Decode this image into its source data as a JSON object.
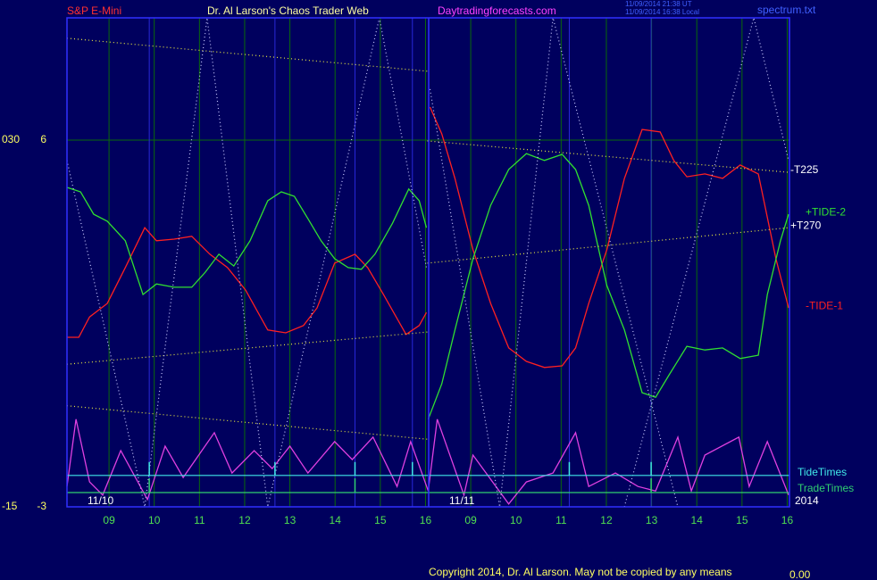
{
  "header": {
    "symbol": "S&P E-Mini",
    "site_title": "Dr. Al Larson's Chaos Trader Web",
    "site_url": "Daytradingforecasts.com",
    "timestamp_ut": "11/09/2014 21:38 UT",
    "timestamp_local": "11/09/2014 16:38 Local",
    "file": "spectrum.txt"
  },
  "footer": {
    "copyright": "Copyright 2014, Dr. Al Larson. May not be copied by any means",
    "readout": "0.00"
  },
  "chart_data": {
    "type": "line",
    "xlim": [
      -0.93,
      15.05
    ],
    "ylim": [
      -3,
      9
    ],
    "yticks": [
      6,
      -3
    ],
    "y2lim": [
      -15,
      45
    ],
    "y2ticks": [
      {
        "value": 30,
        "label": "030"
      },
      -15
    ],
    "xticks": [
      {
        "value": 0,
        "label": "09"
      },
      {
        "value": 1,
        "label": "10"
      },
      {
        "value": 2,
        "label": "11"
      },
      {
        "value": 3,
        "label": "12"
      },
      {
        "value": 4,
        "label": "13"
      },
      {
        "value": 5,
        "label": "14"
      },
      {
        "value": 6,
        "label": "15"
      },
      {
        "value": 7,
        "label": "16"
      },
      {
        "value": 8,
        "label": "09"
      },
      {
        "value": 9,
        "label": "10"
      },
      {
        "value": 10,
        "label": "11"
      },
      {
        "value": 11,
        "label": "12"
      },
      {
        "value": 12,
        "label": "13"
      },
      {
        "value": 13,
        "label": "14"
      },
      {
        "value": 14,
        "label": "15"
      },
      {
        "value": 15,
        "label": "16"
      }
    ],
    "date_labels": [
      "11/10",
      "11/11",
      "2014"
    ],
    "grid": true,
    "series": [
      {
        "name": "-TIDE-1",
        "color": "#ff2020",
        "style": "solid",
        "x": [
          -0.93,
          -0.67,
          -0.43,
          -0.04,
          0.36,
          0.79,
          1.05,
          1.44,
          1.83,
          2.23,
          2.62,
          3.02,
          3.51,
          3.91,
          4.3,
          4.6,
          4.99,
          5.44,
          5.72,
          6.07,
          6.57,
          6.86,
          7.02,
          null,
          7.1,
          7.36,
          7.65,
          8.05,
          8.44,
          8.84,
          9.23,
          9.63,
          10.02,
          10.32,
          10.61,
          11.01,
          11.4,
          11.79,
          12.19,
          12.49,
          12.78,
          13.18,
          13.57,
          13.96,
          14.36,
          14.75,
          15.03
        ],
        "values": [
          1.16,
          1.16,
          1.66,
          1.99,
          2.87,
          3.85,
          3.53,
          3.57,
          3.64,
          3.2,
          2.87,
          2.32,
          1.34,
          1.27,
          1.45,
          1.88,
          2.98,
          3.2,
          2.87,
          2.21,
          1.23,
          1.45,
          1.77,
          null,
          6.81,
          6.15,
          5.06,
          3.31,
          1.99,
          0.9,
          0.57,
          0.42,
          0.46,
          0.9,
          1.99,
          3.31,
          5.06,
          6.26,
          6.2,
          5.5,
          5.1,
          5.17,
          5.06,
          5.39,
          5.17,
          3.09,
          1.88
        ]
      },
      {
        "name": "+TIDE-2",
        "color": "#30e030",
        "style": "solid",
        "x": [
          -0.93,
          -0.63,
          -0.34,
          -0.04,
          0.36,
          0.75,
          1.05,
          1.44,
          1.83,
          2.13,
          2.43,
          2.76,
          3.12,
          3.51,
          3.81,
          4.1,
          4.4,
          4.69,
          4.99,
          5.29,
          5.58,
          5.88,
          6.27,
          6.63,
          6.86,
          7.02,
          null,
          7.06,
          7.36,
          7.65,
          8.05,
          8.44,
          8.84,
          9.23,
          9.63,
          10.02,
          10.32,
          10.61,
          11.01,
          11.4,
          11.79,
          12.09,
          12.39,
          12.78,
          13.18,
          13.57,
          13.96,
          14.36,
          14.56,
          14.85,
          15.03
        ],
        "values": [
          4.84,
          4.73,
          4.18,
          4.01,
          3.53,
          2.21,
          2.47,
          2.39,
          2.39,
          2.76,
          3.2,
          2.91,
          3.53,
          4.51,
          4.73,
          4.62,
          4.07,
          3.53,
          3.09,
          2.87,
          2.83,
          3.2,
          3.96,
          4.8,
          4.51,
          3.85,
          null,
          -0.85,
          0.02,
          1.34,
          3.09,
          4.4,
          5.28,
          5.67,
          5.5,
          5.65,
          5.28,
          4.4,
          2.43,
          1.34,
          -0.2,
          -0.31,
          0.24,
          0.94,
          0.85,
          0.9,
          0.64,
          0.72,
          2.21,
          3.53,
          4.18
        ]
      },
      {
        "name": "-T225",
        "color": "#e8e840",
        "style": "dotted",
        "x": [
          -0.93,
          7.04,
          null,
          -0.93,
          7.04,
          null,
          7.04,
          15.03
        ],
        "values": [
          8.5,
          7.69,
          null,
          -0.52,
          -1.34,
          null,
          5.98,
          5.21
        ]
      },
      {
        "name": "+T270",
        "color": "#e8e840",
        "style": "dotted",
        "x": [
          -0.93,
          7.04,
          null,
          7.04,
          15.03
        ],
        "values": [
          0.5,
          1.29,
          null,
          2.98,
          3.85
        ]
      },
      {
        "color": "#e040e0",
        "style": "solid",
        "x": [
          -0.93,
          -0.73,
          -0.43,
          -0.14,
          0.26,
          0.85,
          1.24,
          1.64,
          2.33,
          2.72,
          3.21,
          3.61,
          4.0,
          4.4,
          4.99,
          5.38,
          5.84,
          6.37,
          6.67,
          7.06,
          7.26,
          7.85,
          8.05,
          8.84,
          9.23,
          9.82,
          10.32,
          10.61,
          11.2,
          11.7,
          12.09,
          12.58,
          12.88,
          13.18,
          13.93,
          14.16,
          14.56,
          15.03
        ],
        "values": [
          -2.5,
          -0.85,
          -2.39,
          -2.71,
          -1.62,
          -2.82,
          -1.51,
          -2.28,
          -1.18,
          -2.17,
          -1.62,
          -2.06,
          -1.51,
          -2.17,
          -1.4,
          -1.84,
          -1.29,
          -2.5,
          -1.4,
          -2.61,
          -0.85,
          -2.71,
          -1.73,
          -2.93,
          -2.39,
          -2.17,
          -1.18,
          -2.5,
          -2.17,
          -2.5,
          -2.61,
          -1.29,
          -2.61,
          -1.73,
          -1.29,
          -2.5,
          -1.4,
          -2.71
        ]
      },
      {
        "color": "#c8c8ff",
        "style": "dotted",
        "x": [
          -0.93,
          0.79,
          2.17,
          3.51,
          5.98,
          7.02,
          null,
          7.1,
          8.64,
          9.82,
          12.58,
          null,
          11.4,
          14.26,
          15.03
        ],
        "values": [
          5.5,
          -3,
          9,
          -3,
          9,
          2.87,
          null,
          7.25,
          -3,
          9,
          -3,
          null,
          -3,
          9,
          5.5
        ]
      }
    ],
    "tide_times": {
      "name": "TideTimes",
      "color": "#40e8e8",
      "level": -2.23,
      "peak": -1.9,
      "x": [
        0.89,
        3.67,
        5.44,
        6.71,
        10.18,
        11.99
      ]
    },
    "trade_times": {
      "name": "TradeTimes",
      "color": "#30d070",
      "level": -2.65,
      "peak": -2.3,
      "x": [
        0.89,
        5.44,
        11.99
      ]
    }
  }
}
